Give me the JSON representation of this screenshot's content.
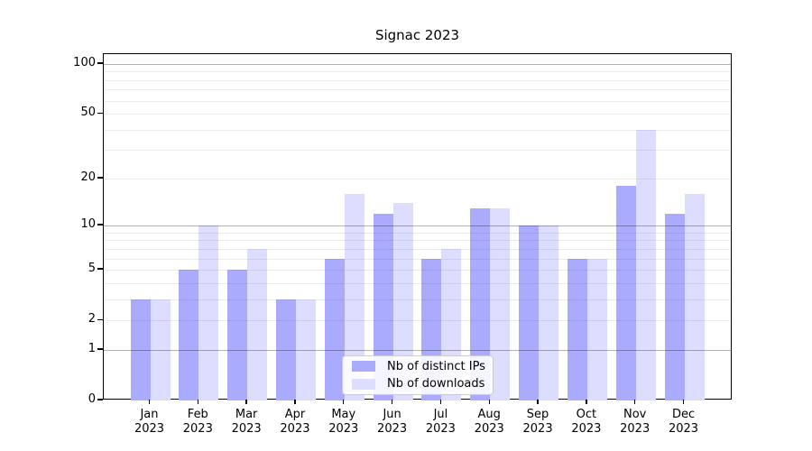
{
  "chart_data": {
    "type": "bar",
    "title": "Signac 2023",
    "categories": [
      "Jan",
      "Feb",
      "Mar",
      "Apr",
      "May",
      "Jun",
      "Jul",
      "Aug",
      "Sep",
      "Oct",
      "Nov",
      "Dec"
    ],
    "category_year": "2023",
    "series": [
      {
        "name": "Nb of distinct IPs",
        "color": "#aaaaff",
        "values": [
          3,
          5,
          5,
          3,
          6,
          12,
          6,
          13,
          10,
          6,
          18,
          12
        ]
      },
      {
        "name": "Nb of downloads",
        "color": "#ddddff",
        "values": [
          3,
          10,
          7,
          3,
          16,
          14,
          7,
          13,
          10,
          6,
          40,
          16
        ]
      }
    ],
    "xlabel": "",
    "ylabel": "",
    "ylim": [
      0,
      100
    ],
    "yscale": "log10(value+1)",
    "yticks": [
      0,
      1,
      2,
      5,
      10,
      20,
      50,
      100
    ],
    "major_gridlines": [
      1,
      10,
      100
    ],
    "minor_gridlines": [
      2,
      3,
      4,
      5,
      6,
      7,
      8,
      9,
      20,
      30,
      40,
      50,
      60,
      70,
      80,
      90
    ],
    "grid": true,
    "legend_position": "lower center"
  },
  "colors": {
    "axis_frame": "#000000",
    "bar_ips": "#aaaaff",
    "bar_downloads": "#ddddff",
    "legend_border": "#cccccc"
  }
}
